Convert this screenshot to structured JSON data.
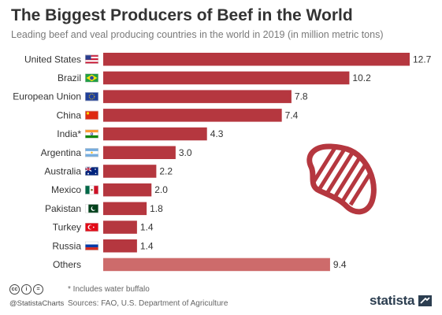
{
  "header": {
    "title": "The Biggest Producers of Beef in the World",
    "subtitle": "Leading beef and veal producing countries in the world in 2019 (in million metric tons)"
  },
  "chart_data": {
    "type": "bar",
    "orientation": "horizontal",
    "categories": [
      "United States",
      "Brazil",
      "European Union",
      "China",
      "India*",
      "Argentina",
      "Australia",
      "Mexico",
      "Pakistan",
      "Turkey",
      "Russia",
      "Others"
    ],
    "values": [
      12.7,
      10.2,
      7.8,
      7.4,
      4.3,
      3.0,
      2.2,
      2.0,
      1.8,
      1.4,
      1.4,
      9.4
    ],
    "value_labels": [
      "12.7",
      "10.2",
      "7.8",
      "7.4",
      "4.3",
      "3.0",
      "2.2",
      "2.0",
      "1.8",
      "1.4",
      "1.4",
      "9.4"
    ],
    "flags": [
      "us-flag-icon",
      "brazil-flag-icon",
      "eu-flag-icon",
      "china-flag-icon",
      "india-flag-icon",
      "argentina-flag-icon",
      "australia-flag-icon",
      "mexico-flag-icon",
      "pakistan-flag-icon",
      "turkey-flag-icon",
      "russia-flag-icon",
      ""
    ],
    "xlim": [
      0,
      12.7
    ],
    "bar_color": "#b5373f",
    "others_color": "#cd6b6b",
    "grid": false
  },
  "footer": {
    "note": "* Includes water buffalo",
    "source": "Sources: FAO, U.S. Department of Agriculture",
    "handle": "@StatistaCharts",
    "brand": "statista",
    "cc_icons": [
      "cc",
      "i",
      "="
    ]
  },
  "decoration": {
    "icon": "steak-icon",
    "color": "#b5373f"
  }
}
